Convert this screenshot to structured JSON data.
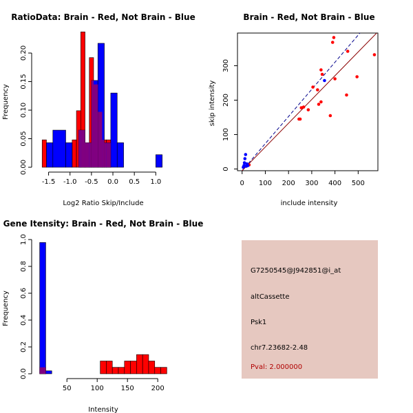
{
  "colors": {
    "brain": "#ff0000",
    "not_brain": "#0000ff",
    "overlap": "#800080",
    "blue_line": "#00008b",
    "red_line": "#8b0000",
    "pval": "#b00000",
    "info_bg": "#e6c8c0"
  },
  "chart_data": [
    {
      "id": "ratio_hist",
      "type": "bar",
      "title": "RatioData: Brain - Red, Not Brain - Blue",
      "xlabel": "Log2 Ratio Skip/Include",
      "ylabel": "Frequency",
      "xlim": [
        -1.75,
        1.3
      ],
      "ylim": [
        0,
        0.235
      ],
      "xticks": [
        -1.5,
        -1.0,
        -0.5,
        0.0,
        0.5,
        1.0
      ],
      "xtick_labels": [
        "-1.5",
        "-1.0",
        "-0.5",
        "0.0",
        "0.5",
        "1.0"
      ],
      "yticks": [
        0.0,
        0.05,
        0.1,
        0.15,
        0.2
      ],
      "ytick_labels": [
        "0.00",
        "0.05",
        "0.10",
        "0.15",
        "0.20"
      ],
      "series": [
        {
          "name": "Brain",
          "color": "red",
          "bins": [
            {
              "x0": -1.65,
              "x1": -1.55,
              "y": 0.048
            },
            {
              "x0": -0.95,
              "x1": -0.85,
              "y": 0.048
            },
            {
              "x0": -0.85,
              "x1": -0.75,
              "y": 0.099
            },
            {
              "x0": -0.75,
              "x1": -0.65,
              "y": 0.237
            },
            {
              "x0": -0.65,
              "x1": -0.55,
              "y": 0.043
            },
            {
              "x0": -0.55,
              "x1": -0.45,
              "y": 0.192
            },
            {
              "x0": -0.45,
              "x1": -0.35,
              "y": 0.145
            },
            {
              "x0": -0.35,
              "x1": -0.25,
              "y": 0.097
            },
            {
              "x0": -0.25,
              "x1": -0.15,
              "y": 0.048
            },
            {
              "x0": -0.15,
              "x1": -0.05,
              "y": 0.048
            }
          ]
        },
        {
          "name": "Not Brain",
          "color": "blue",
          "bins": [
            {
              "x0": -1.55,
              "x1": -1.4,
              "y": 0.043
            },
            {
              "x0": -1.4,
              "x1": -1.1,
              "y": 0.065
            },
            {
              "x0": -1.1,
              "x1": -0.95,
              "y": 0.043
            },
            {
              "x0": -0.8,
              "x1": -0.65,
              "y": 0.065
            },
            {
              "x0": -0.65,
              "x1": -0.5,
              "y": 0.043
            },
            {
              "x0": -0.5,
              "x1": -0.35,
              "y": 0.152
            },
            {
              "x0": -0.35,
              "x1": -0.2,
              "y": 0.217
            },
            {
              "x0": -0.2,
              "x1": -0.05,
              "y": 0.043
            },
            {
              "x0": -0.05,
              "x1": 0.1,
              "y": 0.13
            },
            {
              "x0": 0.1,
              "x1": 0.25,
              "y": 0.043
            },
            {
              "x0": 1.0,
              "x1": 1.15,
              "y": 0.022
            }
          ]
        }
      ]
    },
    {
      "id": "intensity_scatter",
      "type": "scatter",
      "title": "Brain - Red, Not Brain - Blue",
      "xlabel": "include intensity",
      "ylabel": "skip intensity",
      "xlim": [
        -20,
        585
      ],
      "ylim": [
        -5,
        395
      ],
      "xticks": [
        0,
        100,
        200,
        300,
        400,
        500
      ],
      "xtick_labels": [
        "0",
        "100",
        "200",
        "300",
        "400",
        "500"
      ],
      "yticks": [
        0,
        100,
        200,
        300
      ],
      "ytick_labels": [
        "0",
        "100",
        "200",
        "300"
      ],
      "series": [
        {
          "name": "Brain",
          "color": "red",
          "points": [
            [
              245,
              145
            ],
            [
              250,
              145
            ],
            [
              255,
              178
            ],
            [
              265,
              180
            ],
            [
              285,
              172
            ],
            [
              305,
              238
            ],
            [
              325,
              230
            ],
            [
              330,
              188
            ],
            [
              340,
              195
            ],
            [
              340,
              288
            ],
            [
              345,
              275
            ],
            [
              380,
              155
            ],
            [
              390,
              368
            ],
            [
              395,
              382
            ],
            [
              400,
              262
            ],
            [
              450,
              215
            ],
            [
              455,
              342
            ],
            [
              495,
              268
            ],
            [
              570,
              332
            ],
            [
              30,
              12
            ]
          ]
        },
        {
          "name": "Not Brain",
          "color": "blue",
          "points": [
            [
              5,
              5
            ],
            [
              8,
              10
            ],
            [
              10,
              18
            ],
            [
              12,
              30
            ],
            [
              15,
              42
            ],
            [
              18,
              8
            ],
            [
              20,
              15
            ],
            [
              22,
              12
            ],
            [
              25,
              10
            ],
            [
              355,
              257
            ]
          ]
        }
      ],
      "fits": [
        {
          "name": "Not Brain fit",
          "color": "blue",
          "slope": 0.788,
          "intercept": -5,
          "dashed": true
        },
        {
          "name": "Brain fit",
          "color": "red",
          "slope": 0.69,
          "intercept": -5,
          "dashed": false
        }
      ]
    },
    {
      "id": "gene_intensity_hist",
      "type": "bar",
      "title": "Gene Itensity: Brain - Red, Not Brain - Blue",
      "xlabel": "Intensity",
      "ylabel": "Frequency",
      "xlim": [
        2,
        218
      ],
      "ylim": [
        0,
        1.0
      ],
      "xticks": [
        50,
        100,
        150,
        200
      ],
      "xtick_labels": [
        "50",
        "100",
        "150",
        "200"
      ],
      "yticks": [
        0.0,
        0.2,
        0.4,
        0.6,
        0.8,
        1.0
      ],
      "ytick_labels": [
        "0.0",
        "0.2",
        "0.4",
        "0.6",
        "0.8",
        "1.0"
      ],
      "series": [
        {
          "name": "Brain",
          "color": "red",
          "bins": [
            {
              "x0": 5,
              "x1": 15,
              "y": 0.048
            },
            {
              "x0": 105,
              "x1": 115,
              "y": 0.095
            },
            {
              "x0": 115,
              "x1": 125,
              "y": 0.095
            },
            {
              "x0": 125,
              "x1": 135,
              "y": 0.048
            },
            {
              "x0": 135,
              "x1": 145,
              "y": 0.048
            },
            {
              "x0": 145,
              "x1": 155,
              "y": 0.095
            },
            {
              "x0": 155,
              "x1": 165,
              "y": 0.095
            },
            {
              "x0": 165,
              "x1": 175,
              "y": 0.143
            },
            {
              "x0": 175,
              "x1": 185,
              "y": 0.143
            },
            {
              "x0": 185,
              "x1": 195,
              "y": 0.095
            },
            {
              "x0": 195,
              "x1": 205,
              "y": 0.048
            },
            {
              "x0": 205,
              "x1": 215,
              "y": 0.048
            }
          ]
        },
        {
          "name": "Not Brain",
          "color": "blue",
          "bins": [
            {
              "x0": 5,
              "x1": 15,
              "y": 0.978
            },
            {
              "x0": 15,
              "x1": 25,
              "y": 0.022
            }
          ]
        }
      ]
    }
  ],
  "info_panel": {
    "probe_id": "G7250545@J942851@i_at",
    "event_type": "altCassette",
    "gene": "Psk1",
    "location": "chr7.23682-2.48",
    "pval": "Pval: 2.000000"
  }
}
